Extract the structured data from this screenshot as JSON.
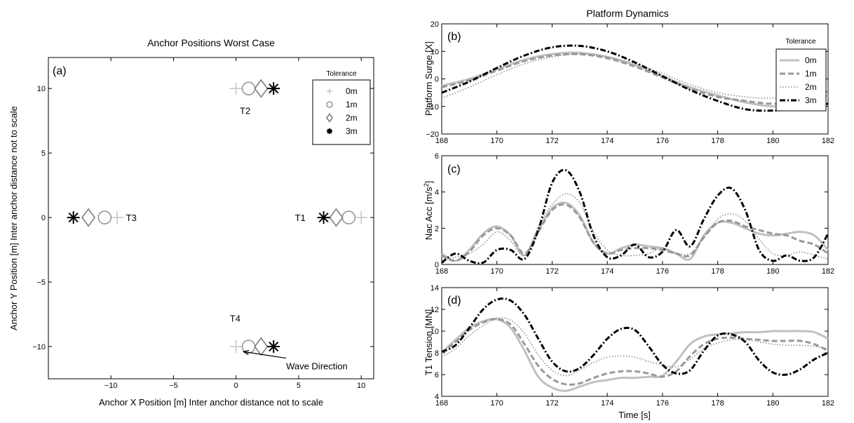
{
  "chart_data": [
    {
      "type": "scatter",
      "id": "a",
      "title": "Anchor Positions Worst Case",
      "panel_label": "(a)",
      "xlabel": "Anchor X Position [m] Inter anchor distance not to scale",
      "ylabel": "Anchor Y Position [m] Inter anchor distance not to scale",
      "xlim": [
        -15,
        11
      ],
      "ylim": [
        -12.5,
        12.4
      ],
      "xticks": [
        -10,
        -5,
        0,
        5,
        10
      ],
      "xtick_labels": [
        "−10",
        "−5",
        "0",
        "5",
        "10"
      ],
      "yticks": [
        -10,
        -5,
        0,
        5,
        10
      ],
      "ytick_labels": [
        "−10",
        "−5",
        "0",
        "5",
        "10"
      ],
      "grid": false,
      "legend": {
        "title": "Tolerance",
        "placement": "top-right",
        "entries": [
          "0m",
          "1m",
          "2m",
          "3m"
        ],
        "markers": [
          "plus",
          "circle",
          "diamond",
          "asterisk"
        ]
      },
      "series": [
        {
          "name": "0m",
          "marker": "plus",
          "color": "#c8c8c8",
          "points": [
            [
              0,
              10
            ],
            [
              10,
              0
            ],
            [
              -9.5,
              0
            ],
            [
              0,
              -10
            ]
          ]
        },
        {
          "name": "1m",
          "marker": "circle",
          "color": "#969696",
          "points": [
            [
              1,
              10
            ],
            [
              9,
              0
            ],
            [
              -10.5,
              0
            ],
            [
              1,
              -10
            ]
          ]
        },
        {
          "name": "2m",
          "marker": "diamond",
          "color": "#7d7d7d",
          "points": [
            [
              2,
              10
            ],
            [
              8,
              0
            ],
            [
              -11.8,
              0
            ],
            [
              2,
              -10
            ]
          ]
        },
        {
          "name": "3m",
          "marker": "asterisk",
          "color": "#000000",
          "points": [
            [
              3,
              10
            ],
            [
              7,
              0
            ],
            [
              -13,
              0
            ],
            [
              3,
              -10
            ]
          ]
        }
      ],
      "annotations": [
        {
          "text": "T2",
          "x": 0.3,
          "y": 8.3
        },
        {
          "text": "T1",
          "x": 4.7,
          "y": 0
        },
        {
          "text": "T3",
          "x": -8.8,
          "y": 0
        },
        {
          "text": "T4",
          "x": -0.5,
          "y": -7.8
        },
        {
          "text": "Wave Direction",
          "x": 4,
          "y": -11.5
        }
      ],
      "arrow": {
        "from": [
          4,
          -10.9
        ],
        "to": [
          0.6,
          -10.4
        ]
      }
    },
    {
      "type": "line",
      "id": "b",
      "title": "Platform Dynamics",
      "panel_label": "(b)",
      "ylabel": "Platform Surge [X]",
      "xlim": [
        168,
        182
      ],
      "ylim": [
        -20,
        20
      ],
      "xticks": [
        168,
        170,
        172,
        174,
        176,
        178,
        180,
        182
      ],
      "yticks": [
        -20,
        -10,
        0,
        10,
        20
      ],
      "ytick_labels": [
        "−20",
        "−10",
        "0",
        "10",
        "20"
      ],
      "grid": false,
      "legend": {
        "title": "Tolerance",
        "placement": "top-right",
        "entries": [
          "0m",
          "1m",
          "2m",
          "3m"
        ]
      },
      "x": [
        168,
        169,
        170,
        171,
        172,
        173,
        174,
        175,
        176,
        177,
        178,
        179,
        180,
        181,
        182
      ],
      "series": [
        {
          "name": "0m",
          "style": "solid",
          "color": "#c0c0c0",
          "values": [
            -2.5,
            0,
            3.5,
            7,
            9,
            9.5,
            8,
            5,
            1,
            -3,
            -6,
            -8.5,
            -10,
            -9.5,
            -6
          ]
        },
        {
          "name": "1m",
          "style": "dashed",
          "color": "#999999",
          "values": [
            -3,
            -0.5,
            3,
            6.5,
            8.5,
            9,
            7.5,
            4.5,
            0.5,
            -3.5,
            -6.5,
            -8,
            -9,
            -8,
            -4.5
          ]
        },
        {
          "name": "2m",
          "style": "dotted",
          "color": "#888888",
          "values": [
            -7,
            -3,
            1.5,
            5.5,
            8,
            9,
            8,
            5.5,
            2,
            -2,
            -5,
            -6.5,
            -7,
            -6,
            -4
          ]
        },
        {
          "name": "3m",
          "style": "dashdot",
          "color": "#000000",
          "values": [
            -5,
            -1,
            4,
            8.5,
            11.5,
            12,
            10,
            6,
            1,
            -4,
            -8,
            -11,
            -11.5,
            -10.5,
            -9
          ]
        }
      ]
    },
    {
      "type": "line",
      "id": "c",
      "panel_label": "(c)",
      "ylabel": "Nac Acc [m/s",
      "ylabel_sup": "2",
      "ylabel_end": "]",
      "xlim": [
        168,
        182
      ],
      "ylim": [
        0,
        6
      ],
      "xticks": [
        168,
        170,
        172,
        174,
        176,
        178,
        180,
        182
      ],
      "yticks": [
        0,
        2,
        4,
        6
      ],
      "grid": false,
      "x": [
        168,
        168.5,
        169,
        169.5,
        170,
        170.5,
        171,
        171.5,
        172,
        172.5,
        173,
        173.5,
        174,
        174.5,
        175,
        175.5,
        176,
        176.5,
        177,
        177.5,
        178,
        178.5,
        179,
        179.5,
        180,
        180.5,
        181,
        181.5,
        182
      ],
      "series": [
        {
          "name": "0m",
          "style": "solid",
          "color": "#c0c0c0",
          "values": [
            0.6,
            0.2,
            0.8,
            1.7,
            2.1,
            1.6,
            0.5,
            1.9,
            3.1,
            3.4,
            2.7,
            1.2,
            0.6,
            0.9,
            1.1,
            1.0,
            0.9,
            0.6,
            0.3,
            1.6,
            2.3,
            2.3,
            2.0,
            1.7,
            1.6,
            1.7,
            1.8,
            1.6,
            0.8
          ]
        },
        {
          "name": "1m",
          "style": "dashed",
          "color": "#999999",
          "values": [
            0.5,
            0.2,
            0.7,
            1.6,
            2.0,
            1.6,
            0.6,
            1.8,
            3.0,
            3.3,
            2.6,
            1.2,
            0.6,
            0.8,
            0.9,
            0.9,
            0.8,
            0.6,
            0.5,
            1.5,
            2.3,
            2.4,
            2.1,
            1.9,
            1.7,
            1.6,
            1.3,
            1.1,
            0.6
          ]
        },
        {
          "name": "2m",
          "style": "dotted",
          "color": "#888888",
          "values": [
            0.2,
            0.4,
            0.6,
            1.1,
            1.8,
            1.3,
            0.5,
            2.1,
            3.3,
            3.9,
            3.4,
            1.8,
            0.8,
            0.5,
            0.5,
            0.6,
            0.9,
            0.6,
            0.6,
            1.5,
            2.5,
            2.8,
            2.4,
            1.4,
            0.6,
            0.5,
            0.7,
            0.5,
            0.3
          ]
        },
        {
          "name": "3m",
          "style": "dashdot",
          "color": "#000000",
          "values": [
            0.1,
            0.6,
            0.2,
            0.1,
            0.8,
            0.8,
            0.3,
            1.9,
            4.5,
            5.2,
            4.0,
            1.6,
            0.4,
            0.5,
            1.1,
            0.4,
            0.7,
            1.9,
            1.0,
            2.5,
            3.8,
            4.2,
            3.0,
            0.8,
            0.2,
            0.5,
            0.2,
            0.4,
            1.7
          ]
        }
      ]
    },
    {
      "type": "line",
      "id": "d",
      "panel_label": "(d)",
      "ylabel": "T1 Tension [MN]",
      "xlabel": "Time [s]",
      "xlim": [
        168,
        182
      ],
      "ylim": [
        4,
        14
      ],
      "xticks": [
        168,
        170,
        172,
        174,
        176,
        178,
        180,
        182
      ],
      "yticks": [
        4,
        6,
        8,
        10,
        12,
        14
      ],
      "grid": false,
      "x": [
        168,
        168.5,
        169,
        169.5,
        170,
        170.5,
        171,
        171.5,
        172,
        172.5,
        173,
        173.5,
        174,
        174.5,
        175,
        175.5,
        176,
        176.5,
        177,
        177.5,
        178,
        178.5,
        179,
        179.5,
        180,
        180.5,
        181,
        181.5,
        182
      ],
      "series": [
        {
          "name": "0m",
          "style": "solid",
          "color": "#c0c0c0",
          "values": [
            8.0,
            9.2,
            10.3,
            10.9,
            11.1,
            10.3,
            8.2,
            5.8,
            4.8,
            4.5,
            4.9,
            5.3,
            5.5,
            5.7,
            5.7,
            5.8,
            5.9,
            7.2,
            8.8,
            9.5,
            9.7,
            9.8,
            9.9,
            9.9,
            10.0,
            10.0,
            10.0,
            9.9,
            9.3
          ]
        },
        {
          "name": "1m",
          "style": "dashed",
          "color": "#999999",
          "values": [
            8.0,
            9.0,
            10.1,
            10.8,
            11.1,
            10.6,
            8.8,
            6.8,
            5.6,
            5.1,
            5.2,
            5.7,
            6.1,
            6.3,
            6.3,
            6.1,
            5.8,
            6.3,
            7.7,
            8.8,
            9.3,
            9.4,
            9.3,
            9.2,
            9.1,
            9.1,
            9.1,
            8.8,
            8.2
          ]
        },
        {
          "name": "2m",
          "style": "dotted",
          "color": "#888888",
          "values": [
            7.6,
            8.4,
            9.6,
            10.5,
            11.2,
            11.0,
            9.8,
            7.8,
            6.4,
            5.9,
            6.4,
            7.1,
            7.6,
            7.7,
            7.6,
            7.2,
            6.9,
            6.7,
            7.4,
            8.4,
            8.9,
            9.2,
            9.2,
            9.0,
            8.8,
            8.7,
            8.7,
            8.6,
            8.4
          ]
        },
        {
          "name": "3m",
          "style": "dashdot",
          "color": "#000000",
          "values": [
            8.1,
            8.7,
            10.3,
            12.0,
            12.9,
            12.8,
            11.5,
            9.3,
            7.2,
            6.3,
            6.6,
            7.8,
            9.3,
            10.2,
            10.1,
            8.6,
            6.9,
            6.1,
            6.4,
            8.2,
            9.6,
            9.7,
            9.0,
            7.3,
            6.2,
            6.0,
            6.5,
            7.4,
            8.0
          ]
        }
      ]
    }
  ]
}
